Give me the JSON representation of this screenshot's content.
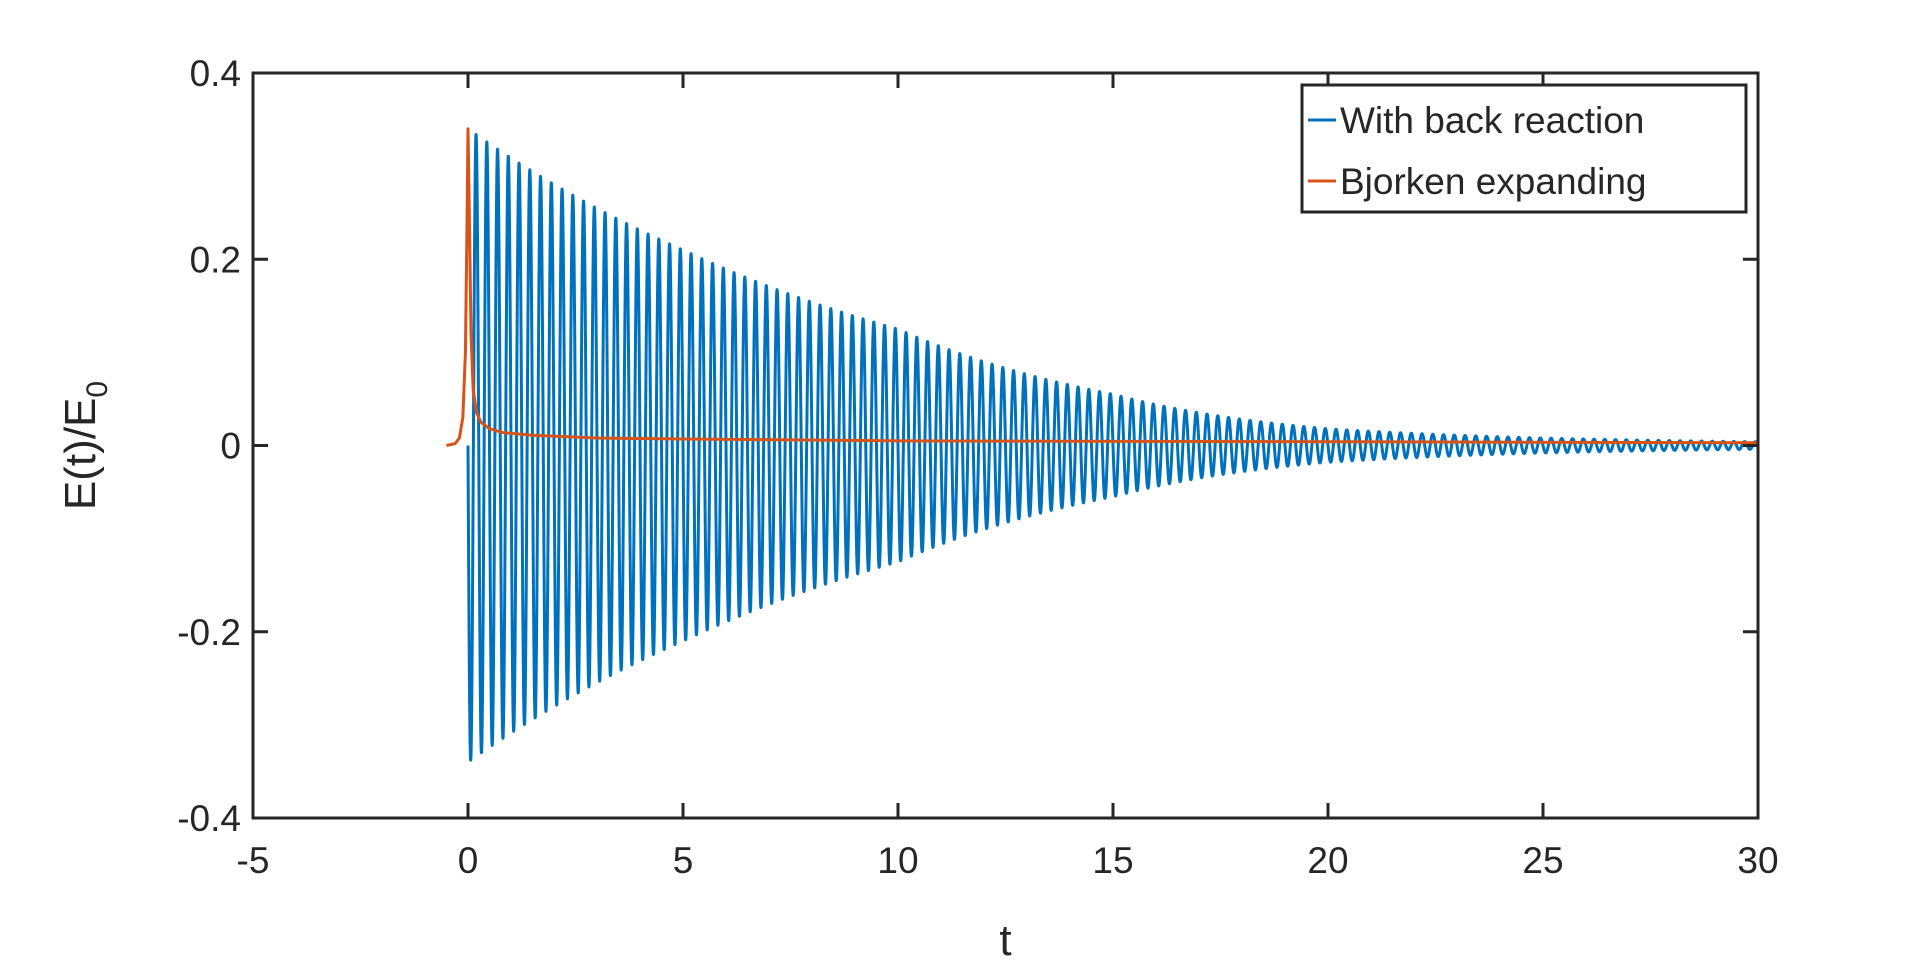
{
  "chart_data": {
    "type": "line",
    "xlabel": "t",
    "ylabel_main": "E(t)/E",
    "ylabel_sub": "0",
    "xlim": [
      -5,
      30
    ],
    "ylim": [
      -0.4,
      0.4
    ],
    "xticks": [
      -5,
      0,
      5,
      10,
      15,
      20,
      25,
      30
    ],
    "yticks": [
      -0.4,
      -0.2,
      0,
      0.2,
      0.4
    ],
    "xtick_labels": [
      "-5",
      "0",
      "5",
      "10",
      "15",
      "20",
      "25",
      "30"
    ],
    "ytick_labels": [
      "-0.4",
      "-0.2",
      "0",
      "0.2",
      "0.4"
    ],
    "grid": false,
    "box": true,
    "legend_position": "top-right",
    "series": [
      {
        "name": "With back reaction",
        "color": "#0072BD",
        "model": "damped-oscillation",
        "t_start": 0,
        "t_end": 30,
        "initial_amplitude": 0.34,
        "amplitude_at_t": [
          [
            0,
            0.34
          ],
          [
            5,
            0.21
          ],
          [
            10,
            0.125
          ],
          [
            15,
            0.055
          ],
          [
            20,
            0.018
          ],
          [
            25,
            0.008
          ],
          [
            30,
            0.004
          ]
        ],
        "period": 0.25,
        "first_extremum": "min"
      },
      {
        "name": "Bjorken expanding",
        "color": "#D95319",
        "model": "pulse",
        "points": [
          [
            -0.5,
            0.0
          ],
          [
            -0.3,
            0.002
          ],
          [
            -0.2,
            0.008
          ],
          [
            -0.12,
            0.03
          ],
          [
            -0.06,
            0.1
          ],
          [
            -0.02,
            0.25
          ],
          [
            0.0,
            0.34
          ],
          [
            0.03,
            0.25
          ],
          [
            0.07,
            0.12
          ],
          [
            0.12,
            0.06
          ],
          [
            0.2,
            0.035
          ],
          [
            0.3,
            0.025
          ],
          [
            0.5,
            0.018
          ],
          [
            0.8,
            0.014
          ],
          [
            1.5,
            0.011
          ],
          [
            3,
            0.008
          ],
          [
            5,
            0.007
          ],
          [
            10,
            0.005
          ],
          [
            20,
            0.004
          ],
          [
            30,
            0.003
          ]
        ]
      }
    ]
  }
}
